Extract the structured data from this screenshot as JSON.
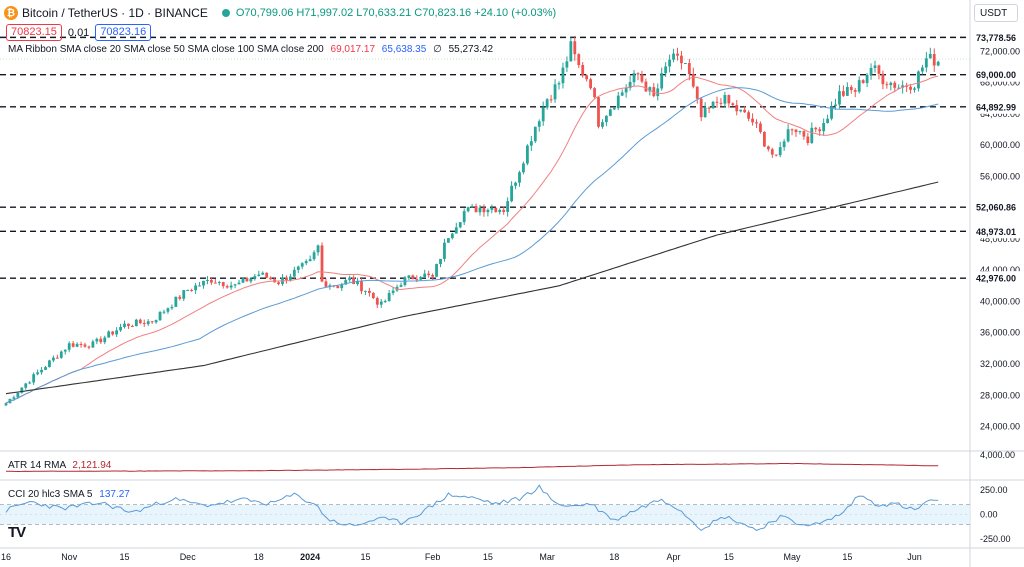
{
  "header": {
    "symbol": "Bitcoin / TetherUS · 1D · BINANCE",
    "open": "O70,799.06",
    "high": "H71,997.02",
    "low": "L70,633.21",
    "close": "C70,823.16",
    "change": "+24.10 (+0.03%)",
    "sell_price": "70823.15",
    "spread": "0.01",
    "buy_price": "70823.16",
    "currency": "USDT"
  },
  "indicators": {
    "ma_label": "MA Ribbon SMA close 20 SMA close 50 SMA close 100 SMA close 200",
    "ma_values": [
      "69,017.17",
      "65,638.35",
      "∅",
      "55,273.42"
    ],
    "atr_label": "ATR 14 RMA",
    "atr_value": "2,121.94",
    "cci_label": "CCI 20 hlc3 SMA 5",
    "cci_value": "137.27"
  },
  "colors": {
    "up": "#26a69a",
    "down": "#ef5350",
    "sma20": "#f0807f",
    "sma50": "#5b9bd5",
    "sma200": "#333333",
    "atr": "#b22833",
    "cci": "#5b9bd5"
  },
  "chart_data": [
    {
      "type": "candlestick",
      "title": "Bitcoin / TetherUS · 1D · BINANCE",
      "ylim": [
        21000,
        76000
      ],
      "y_ticks": [
        24000,
        28000,
        32000,
        36000,
        40000,
        44000,
        48000,
        52000,
        56000,
        60000,
        64000,
        68000,
        72000
      ],
      "y_tick_labels": [
        "24,000.00",
        "28,000.00",
        "32,000.00",
        "36,000.00",
        "40,000.00",
        "44,000.00",
        "48,000.00",
        "52,000.00",
        "56,000.00",
        "60,000.00",
        "64,000.00",
        "68,000.00",
        "72,000.00"
      ],
      "x_labels": [
        "16",
        "Nov",
        "15",
        "Dec",
        "18",
        "2024",
        "15",
        "Feb",
        "15",
        "Mar",
        "18",
        "Apr",
        "15",
        "May",
        "15",
        "Jun"
      ],
      "x_label_days": [
        0,
        16,
        30,
        46,
        64,
        77,
        91,
        108,
        122,
        137,
        154,
        169,
        183,
        199,
        213,
        230
      ],
      "horizontal_levels": [
        73778.56,
        69000.0,
        64892.99,
        52060.86,
        48973.01,
        42976.0
      ],
      "horizontal_level_labels": [
        "73,778.56",
        "69,000.00",
        "64,892.99",
        "52,060.86",
        "48,973.01",
        "42,976.00"
      ],
      "price_anchor_days": [
        0,
        5,
        16,
        22,
        30,
        37,
        46,
        52,
        58,
        64,
        69,
        77,
        79,
        80,
        84,
        87,
        91,
        95,
        100,
        105,
        108,
        112,
        116,
        120,
        124,
        126,
        130,
        134,
        137,
        140,
        143,
        145,
        148,
        150,
        154,
        157,
        160,
        164,
        168,
        172,
        176,
        181,
        185,
        189,
        195,
        197,
        199,
        203,
        207,
        211,
        215,
        219,
        222,
        226,
        230,
        233,
        236
      ],
      "price_anchor_values": [
        27000,
        29500,
        34500,
        34500,
        37000,
        37500,
        41500,
        42800,
        42000,
        43500,
        42500,
        45000,
        47000,
        42500,
        42000,
        42800,
        41500,
        39500,
        42500,
        43500,
        43000,
        48500,
        51500,
        52000,
        52000,
        51800,
        57000,
        62500,
        66000,
        68000,
        72500,
        70000,
        68000,
        63000,
        65500,
        67500,
        69000,
        66000,
        71000,
        70500,
        63500,
        66000,
        64500,
        63000,
        58000,
        61000,
        62500,
        61000,
        63000,
        66500,
        67000,
        70000,
        68500,
        67500,
        68000,
        71000,
        70823
      ],
      "sma200_days": [
        0,
        50,
        100,
        140,
        180,
        236
      ],
      "sma200_values": [
        28200,
        31800,
        38000,
        42000,
        48500,
        55273
      ],
      "series": [
        {
          "name": "SMA close 20",
          "last": 69017.17
        },
        {
          "name": "SMA close 50",
          "last": 65638.35
        },
        {
          "name": "SMA close 200",
          "last": 55273.42
        }
      ]
    },
    {
      "type": "line",
      "name": "ATR 14 RMA",
      "last": 2121.94,
      "ylim": [
        0,
        4500
      ],
      "y_ticks": [
        4000
      ],
      "y_tick_labels": [
        "4,000.00"
      ],
      "anchor_days": [
        0,
        60,
        100,
        130,
        160,
        200,
        236
      ],
      "anchor_values": [
        1150,
        1250,
        1500,
        1800,
        2300,
        2500,
        2122
      ]
    },
    {
      "type": "line",
      "name": "CCI 20 hlc3 SMA 5",
      "last": 137.27,
      "ylim": [
        -330,
        330
      ],
      "bands": [
        100,
        -100
      ],
      "y_ticks": [
        250,
        0,
        -250
      ],
      "y_tick_labels": [
        "250.00",
        "0.00",
        "-250.00"
      ],
      "anchor_days": [
        0,
        6,
        14,
        24,
        32,
        42,
        50,
        60,
        67,
        73,
        78,
        82,
        88,
        94,
        100,
        106,
        112,
        118,
        124,
        130,
        135,
        138,
        142,
        148,
        154,
        160,
        166,
        170,
        176,
        182,
        186,
        190,
        196,
        200,
        206,
        212,
        216,
        220,
        226,
        230,
        234,
        236
      ],
      "anchor_values": [
        40,
        130,
        60,
        120,
        20,
        160,
        90,
        150,
        110,
        200,
        110,
        -60,
        -120,
        -40,
        -80,
        40,
        200,
        170,
        110,
        160,
        280,
        150,
        80,
        110,
        -60,
        60,
        160,
        70,
        -140,
        -20,
        -80,
        -160,
        -20,
        -90,
        -100,
        20,
        200,
        110,
        100,
        40,
        150,
        137
      ]
    }
  ]
}
